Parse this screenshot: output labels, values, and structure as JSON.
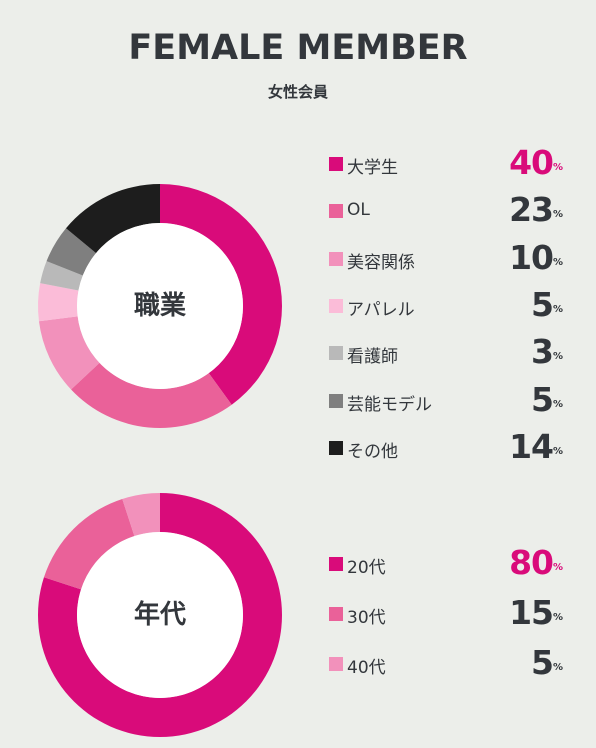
{
  "header": {
    "title": "FEMALE MEMBER",
    "subtitle": "女性会員"
  },
  "chart_data": [
    {
      "type": "pie",
      "center_label": "職業",
      "highlight_index": 0,
      "percent_unit": "%",
      "categories": [
        "大学生",
        "OL",
        "美容関係",
        "アパレル",
        "看護師",
        "芸能モデル",
        "その他"
      ],
      "values": [
        40,
        23,
        10,
        5,
        3,
        5,
        14
      ],
      "colors": [
        "#d90b7a",
        "#ea6199",
        "#f291bb",
        "#fbbcd8",
        "#b9b9b9",
        "#7f7f7f",
        "#1d1d1d"
      ]
    },
    {
      "type": "pie",
      "center_label": "年代",
      "highlight_index": 0,
      "percent_unit": "%",
      "categories": [
        "20代",
        "30代",
        "40代"
      ],
      "values": [
        80,
        15,
        5
      ],
      "colors": [
        "#d90b7a",
        "#ea6199",
        "#f291bb"
      ]
    }
  ]
}
